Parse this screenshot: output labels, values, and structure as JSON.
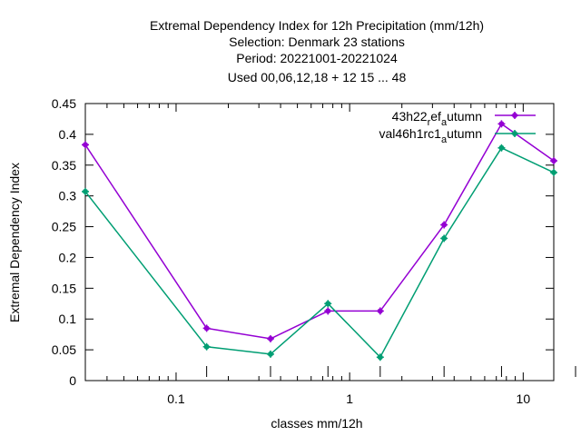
{
  "chart_data": {
    "type": "line",
    "title_lines": [
      "Extremal Dependency Index  for 12h Precipitation (mm/12h)",
      "Selection: Denmark     23 stations",
      "Period: 20221001-20221024",
      "Used  00,06,12,18  + 12 15 ... 48"
    ],
    "xlabel": "classes mm/12h",
    "ylabel": "Extremal Dependency Index",
    "xscale": "log",
    "xlim": [
      0.03,
      15
    ],
    "ylim": [
      0,
      0.45
    ],
    "x_ticks": [
      0.1,
      1,
      10
    ],
    "x_tick_labels": [
      "0.1",
      "1",
      "10"
    ],
    "y_ticks": [
      0,
      0.05,
      0.1,
      0.15,
      0.2,
      0.25,
      0.3,
      0.35,
      0.4,
      0.45
    ],
    "y_tick_labels": [
      "0",
      "0.05",
      "0.1",
      "0.15",
      "0.2",
      "0.25",
      "0.3",
      "0.35",
      "0.4",
      "0.45"
    ],
    "grid": false,
    "legend_position": "top-right",
    "x": [
      0.03,
      0.15,
      0.35,
      0.75,
      1.5,
      3.5,
      7.5,
      15
    ],
    "series": [
      {
        "name_main": "43h22",
        "name_sub1": "r",
        "name_mid": "ef",
        "name_sub2": "a",
        "name_end": "utumn",
        "color": "#9400d3",
        "values": [
          0.383,
          0.085,
          0.068,
          0.113,
          0.113,
          0.253,
          0.417,
          0.357
        ]
      },
      {
        "name_main": "val46h1rc1",
        "name_sub2": "a",
        "name_end": "utumn",
        "color": "#009e73",
        "values": [
          0.307,
          0.055,
          0.043,
          0.125,
          0.038,
          0.231,
          0.378,
          0.338
        ]
      }
    ]
  }
}
